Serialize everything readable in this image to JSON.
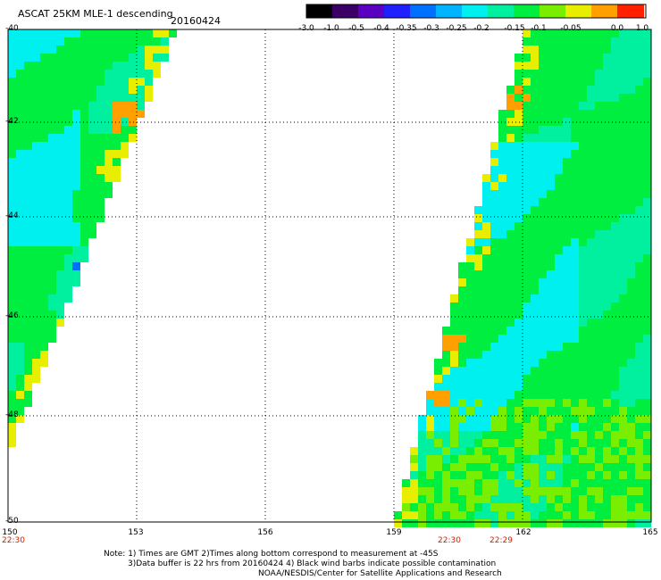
{
  "title": "ASCAT 25KM MLE-1 descending",
  "date": "20160424",
  "colorbar": {
    "ticks": [
      "-3.0",
      "-1.0",
      "-0.5",
      "-0.4",
      "-0.35",
      "-0.3",
      "-0.25",
      "-0.2",
      "-0.15",
      "-0.1",
      "-0.05",
      "0.0",
      "1.0"
    ],
    "colors": [
      "#000000",
      "#3a0066",
      "#5a00c0",
      "#2020ff",
      "#0070ff",
      "#00b4ff",
      "#00f0f0",
      "#00f0a0",
      "#00ee40",
      "#7aee00",
      "#e8ee00",
      "#ffa000",
      "#ff2000"
    ]
  },
  "map": {
    "y_labels": [
      "-40",
      "-42",
      "-44",
      "-46",
      "-48",
      "-50"
    ],
    "x_labels": [
      "150",
      "153",
      "156",
      "159",
      "162",
      "165"
    ],
    "swath_times": [
      "22:30",
      "22:30",
      "22:29"
    ],
    "colors": {
      "cyan": "#00f0f0",
      "aqua_green": "#00f0a0",
      "green": "#00ee40",
      "lime": "#7aee00",
      "yellow": "#e8ee00",
      "orange": "#ffa000",
      "blue": "#0070ff"
    }
  },
  "notes": {
    "line1": "Note: 1) Times are GMT 2)Times along bottom correspond to measurement at -45S",
    "line2": "3)Data buffer is 22 hrs from 20160424 4) Black wind barbs indicate possible contamination",
    "line3": "NOAA/NESDIS/Center for Satellite Applications and Research"
  }
}
